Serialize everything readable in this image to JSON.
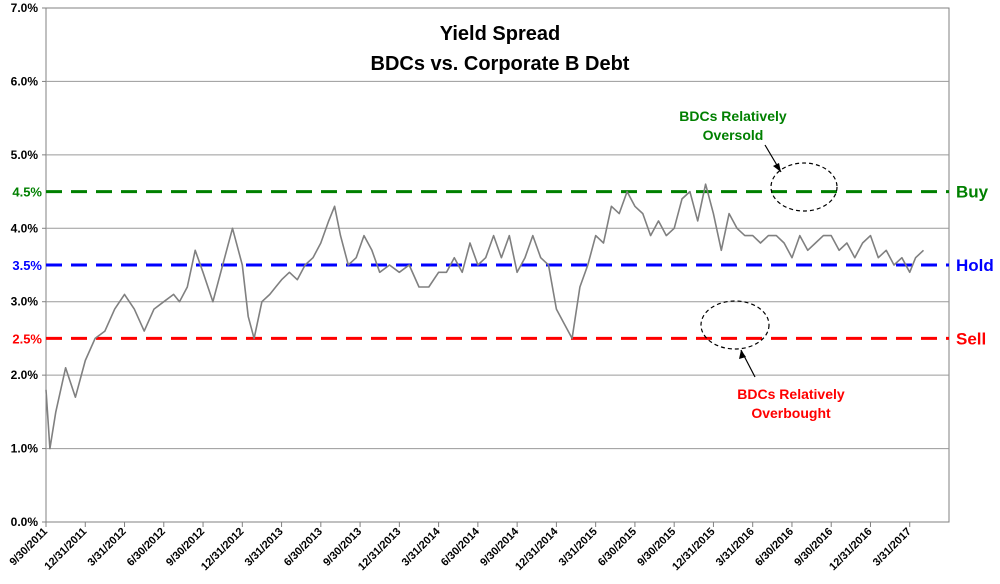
{
  "chart_data": {
    "type": "line",
    "title_line1": "Yield Spread",
    "title_line2": "BDCs vs. Corporate B Debt",
    "xlabel": "",
    "ylabel": "",
    "ylim": [
      0,
      7
    ],
    "y_ticks": [
      "0.0%",
      "1.0%",
      "2.0%",
      "3.0%",
      "4.0%",
      "5.0%",
      "6.0%",
      "7.0%"
    ],
    "x_ticks": [
      "9/30/2011",
      "12/31/2011",
      "3/31/2012",
      "6/30/2012",
      "9/30/2012",
      "12/31/2012",
      "3/31/2013",
      "6/30/2013",
      "9/30/2013",
      "12/31/2013",
      "3/31/2014",
      "6/30/2014",
      "9/30/2014",
      "12/31/2014",
      "3/31/2015",
      "6/30/2015",
      "9/30/2015",
      "12/31/2015",
      "3/31/2016",
      "6/30/2016",
      "9/30/2016",
      "12/31/2016",
      "3/31/2017"
    ],
    "grid": true,
    "series": [
      {
        "name": "",
        "color": "#808080",
        "x": [
          0,
          0.1,
          0.25,
          0.5,
          0.75,
          1.0,
          1.25,
          1.5,
          1.75,
          2.0,
          2.25,
          2.5,
          2.75,
          3.0,
          3.25,
          3.4,
          3.6,
          3.8,
          4.0,
          4.25,
          4.5,
          4.75,
          5.0,
          5.15,
          5.3,
          5.5,
          5.7,
          5.85,
          6.0,
          6.2,
          6.4,
          6.6,
          6.8,
          7.0,
          7.2,
          7.35,
          7.5,
          7.7,
          7.9,
          8.1,
          8.3,
          8.5,
          8.75,
          9.0,
          9.25,
          9.5,
          9.75,
          10.0,
          10.2,
          10.4,
          10.6,
          10.8,
          11.0,
          11.2,
          11.4,
          11.6,
          11.8,
          12.0,
          12.2,
          12.4,
          12.6,
          12.8,
          13.0,
          13.2,
          13.4,
          13.6,
          13.8,
          14.0,
          14.2,
          14.4,
          14.6,
          14.8,
          15.0,
          15.2,
          15.4,
          15.6,
          15.8,
          16.0,
          16.2,
          16.4,
          16.6,
          16.8,
          17.0,
          17.2,
          17.4,
          17.6,
          17.8,
          18.0,
          18.2,
          18.4,
          18.6,
          18.8,
          19.0,
          19.2,
          19.4,
          19.6,
          19.8,
          20.0,
          20.2,
          20.4,
          20.6,
          20.8,
          21.0,
          21.2,
          21.4,
          21.6,
          21.8,
          22.0,
          22.15,
          22.35
        ],
        "values": [
          1.8,
          1.0,
          1.5,
          2.1,
          1.7,
          2.2,
          2.5,
          2.6,
          2.9,
          3.1,
          2.9,
          2.6,
          2.9,
          3.0,
          3.1,
          3.0,
          3.2,
          3.7,
          3.4,
          3.0,
          3.5,
          4.0,
          3.5,
          2.8,
          2.5,
          3.0,
          3.1,
          3.2,
          3.3,
          3.4,
          3.3,
          3.5,
          3.6,
          3.8,
          4.1,
          4.3,
          3.9,
          3.5,
          3.6,
          3.9,
          3.7,
          3.4,
          3.5,
          3.4,
          3.5,
          3.2,
          3.2,
          3.4,
          3.4,
          3.6,
          3.4,
          3.8,
          3.5,
          3.6,
          3.9,
          3.6,
          3.9,
          3.4,
          3.6,
          3.9,
          3.6,
          3.5,
          2.9,
          2.7,
          2.5,
          3.2,
          3.5,
          3.9,
          3.8,
          4.3,
          4.2,
          4.5,
          4.3,
          4.2,
          3.9,
          4.1,
          3.9,
          4.0,
          4.4,
          4.5,
          4.1,
          4.6,
          4.2,
          3.7,
          4.2,
          4.0,
          3.9,
          3.9,
          3.8,
          3.9,
          3.9,
          3.8,
          3.6,
          3.9,
          3.7,
          3.8,
          3.9,
          3.9,
          3.7,
          3.8,
          3.6,
          3.8,
          3.9,
          3.6,
          3.7,
          3.5,
          3.6,
          3.4,
          3.6,
          3.7
        ]
      }
    ],
    "reference_lines": [
      {
        "value": 4.5,
        "label": "4.5%",
        "name": "Buy",
        "color": "#008000"
      },
      {
        "value": 3.5,
        "label": "3.5%",
        "name": "Hold",
        "color": "#0000ff"
      },
      {
        "value": 2.5,
        "label": "2.5%",
        "name": "Sell",
        "color": "#ff0000"
      }
    ],
    "annotations": [
      {
        "line1": "BDCs Relatively",
        "line2": "Oversold",
        "color": "#008000"
      },
      {
        "line1": "BDCs Relatively",
        "line2": "Overbought",
        "color": "#ff0000"
      }
    ]
  }
}
